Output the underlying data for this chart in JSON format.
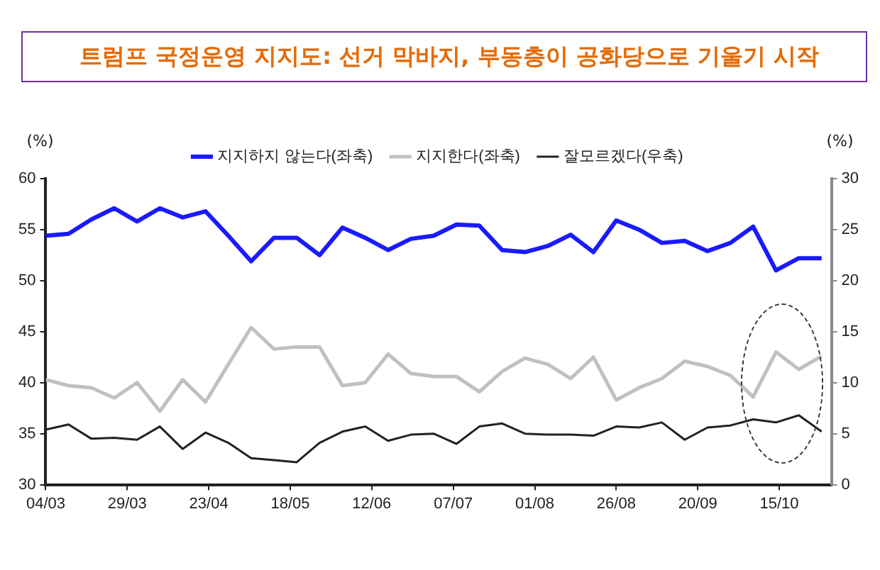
{
  "chart_data": {
    "type": "line",
    "title": "트럼프 국정운영 지지도: 선거 막바지, 부동층이 공화당으로 기울기 시작",
    "ylabel": "(%)",
    "y2label": "(%)",
    "x": [
      "--03-04",
      "--03-11",
      "--03-18",
      "--03-25",
      "--04-01",
      "--04-08",
      "--04-15",
      "--04-22",
      "--04-29",
      "--05-06",
      "--05-13",
      "--05-20",
      "--05-27",
      "--06-03",
      "--06-10",
      "--06-17",
      "--06-24",
      "--07-01",
      "--07-08",
      "--07-15",
      "--07-22",
      "--07-29",
      "--08-05",
      "--08-12",
      "--08-19",
      "--08-26",
      "--09-02",
      "--09-09",
      "--09-16",
      "--09-23",
      "--09-30",
      "--10-07",
      "--10-14",
      "--10-21",
      "--10-28"
    ],
    "series": [
      {
        "name": "지지하지 않는다(좌축)",
        "color": "#1a1aff",
        "values": [
          54.4,
          54.6,
          56.0,
          57.1,
          55.8,
          57.1,
          56.2,
          56.8,
          54.4,
          51.9,
          54.2,
          54.2,
          52.5,
          55.2,
          54.2,
          53.0,
          54.1,
          54.4,
          55.5,
          55.4,
          53.0,
          52.8,
          53.4,
          54.5,
          52.8,
          55.9,
          55.0,
          53.7,
          53.9,
          52.9,
          53.7,
          55.3,
          51.0,
          52.2,
          52.2
        ]
      },
      {
        "name": "지지한다(좌축)",
        "color": "#c0c0c0",
        "values": [
          40.3,
          39.7,
          39.5,
          38.5,
          40.0,
          37.2,
          40.3,
          38.1,
          41.8,
          45.4,
          43.3,
          43.5,
          43.5,
          39.7,
          40.0,
          42.8,
          40.9,
          40.6,
          40.6,
          39.1,
          41.1,
          42.4,
          41.8,
          40.4,
          42.5,
          38.3,
          39.5,
          40.4,
          42.1,
          41.6,
          40.7,
          38.6,
          43.0,
          41.3,
          42.6
        ]
      },
      {
        "name": "잘모르겠다(우축)",
        "color": "#222222",
        "axis": "y2",
        "values": [
          5.4,
          5.9,
          4.5,
          4.6,
          4.4,
          5.7,
          3.5,
          5.1,
          4.1,
          2.6,
          2.4,
          2.2,
          4.1,
          5.2,
          5.7,
          4.3,
          4.9,
          5.0,
          4.0,
          5.7,
          6.0,
          5.0,
          4.9,
          4.9,
          4.8,
          5.7,
          5.6,
          6.1,
          4.4,
          5.6,
          5.8,
          6.4,
          6.1,
          6.8,
          5.2
        ]
      }
    ],
    "xlim": [
      "--03-04",
      "--10-31"
    ],
    "xticks": [
      {
        "value": "--03-04",
        "label": "04/03"
      },
      {
        "value": "--03-29",
        "label": "29/03"
      },
      {
        "value": "--04-23",
        "label": "23/04"
      },
      {
        "value": "--05-18",
        "label": "18/05"
      },
      {
        "value": "--06-12",
        "label": "12/06"
      },
      {
        "value": "--07-07",
        "label": "07/07"
      },
      {
        "value": "--08-01",
        "label": "01/08"
      },
      {
        "value": "--08-26",
        "label": "26/08"
      },
      {
        "value": "--09-20",
        "label": "20/09"
      },
      {
        "value": "--10-15",
        "label": "15/10"
      }
    ],
    "ylim": [
      30,
      60
    ],
    "yticks": [
      30,
      35,
      40,
      45,
      50,
      55,
      60
    ],
    "y2lim": [
      0,
      30
    ],
    "y2ticks": [
      0,
      5,
      10,
      15,
      20,
      25,
      30
    ],
    "grid": false,
    "legend": "top",
    "marker": "none",
    "line_style": "solid"
  }
}
